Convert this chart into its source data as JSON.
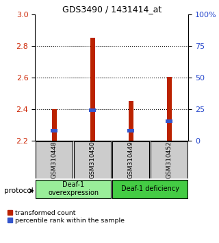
{
  "title": "GDS3490 / 1431414_at",
  "samples": [
    "GSM310448",
    "GSM310450",
    "GSM310449",
    "GSM310452"
  ],
  "red_bar_tops": [
    2.4,
    2.855,
    2.455,
    2.605
  ],
  "blue_bar_tops": [
    2.275,
    2.405,
    2.275,
    2.335
  ],
  "blue_bar_bases": [
    2.255,
    2.385,
    2.255,
    2.315
  ],
  "bar_base": 2.2,
  "ylim": [
    2.2,
    3.0
  ],
  "yticks_left": [
    2.2,
    2.4,
    2.6,
    2.8,
    3.0
  ],
  "yticks_right": [
    0,
    25,
    50,
    75,
    100
  ],
  "yticks_right_labels": [
    "0",
    "25",
    "50",
    "75",
    "100%"
  ],
  "bar_color_red": "#bb2200",
  "bar_color_blue": "#3355cc",
  "bar_width": 0.12,
  "groups": [
    {
      "label": "Deaf-1\noverexpression",
      "indices": [
        0,
        1
      ],
      "color": "#99ee99"
    },
    {
      "label": "Deaf-1 deficiency",
      "indices": [
        2,
        3
      ],
      "color": "#44cc44"
    }
  ],
  "protocol_label": "protocol",
  "legend_red": "transformed count",
  "legend_blue": "percentile rank within the sample",
  "axis_label_color_left": "#cc2200",
  "axis_label_color_right": "#2244cc",
  "sample_box_color": "#cccccc",
  "group1_color": "#99ee99",
  "group2_color": "#44cc44"
}
